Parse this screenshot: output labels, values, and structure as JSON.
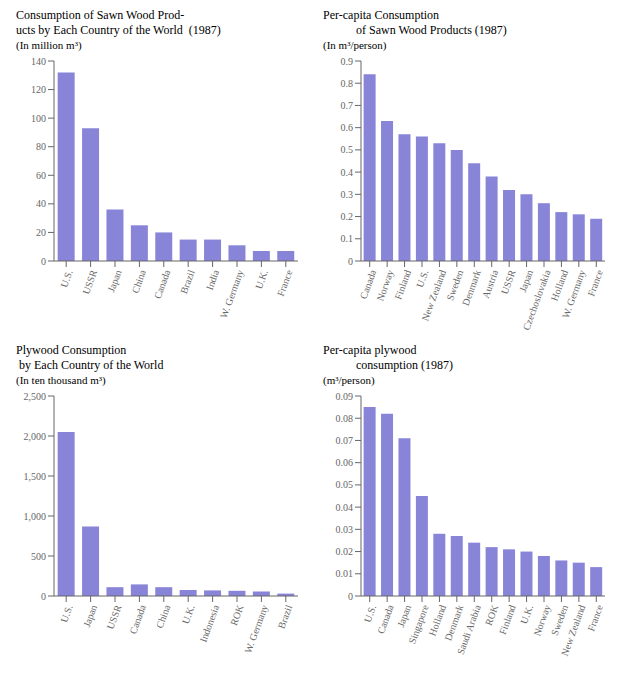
{
  "chart_data": [
    {
      "type": "bar",
      "title": "Consumption of Sawn Wood Prod-\nucts by Each Country of the World  (1987)",
      "y_label": "(In million m³)",
      "categories": [
        "U.S.",
        "USSR",
        "Japan",
        "China",
        "Canada",
        "Brazil",
        "India",
        "W. Germany",
        "U.K.",
        "France"
      ],
      "values": [
        132,
        93,
        36,
        25,
        20,
        15,
        15,
        11,
        7,
        7
      ],
      "ylim": [
        0,
        140
      ],
      "yticks": [
        0,
        20,
        40,
        60,
        80,
        100,
        120,
        140
      ],
      "color": "#8884d8",
      "grid": false
    },
    {
      "type": "bar",
      "title": "Per-capita Consumption\n           of Sawn Wood Products (1987)",
      "y_label": "(In m³/person)",
      "categories": [
        "Canada",
        "Norway",
        "Finland",
        "U.S.",
        "New Zealand",
        "Sweden",
        "Denmark",
        "Austria",
        "USSR",
        "Japan",
        "Czechoslovakia",
        "Holland",
        "W. Germany",
        "France"
      ],
      "values": [
        0.84,
        0.63,
        0.57,
        0.56,
        0.53,
        0.5,
        0.44,
        0.38,
        0.32,
        0.3,
        0.26,
        0.22,
        0.21,
        0.19
      ],
      "ylim": [
        0,
        0.9
      ],
      "yticks": [
        0,
        0.1,
        0.2,
        0.3,
        0.4,
        0.5,
        0.6,
        0.7,
        0.8,
        0.9
      ],
      "color": "#8884d8",
      "grid": false
    },
    {
      "type": "bar",
      "title": "Plywood Consumption\n by Each Country of the World",
      "y_label": "(In ten thousand m³)",
      "categories": [
        "U.S.",
        "Japan",
        "USSR",
        "Canada",
        "China",
        "U.K.",
        "Indonesia",
        "ROK",
        "W. Germany",
        "Brazil"
      ],
      "values": [
        2050,
        870,
        110,
        145,
        110,
        75,
        70,
        65,
        55,
        30
      ],
      "ylim": [
        0,
        2500
      ],
      "yticks": [
        0,
        500,
        {
          "value": 1000,
          "label": "1,000"
        },
        {
          "value": 1500,
          "label": "1,500"
        },
        {
          "value": 2000,
          "label": "2,000"
        },
        {
          "value": 2500,
          "label": "2,500"
        }
      ],
      "color": "#8884d8",
      "grid": false
    },
    {
      "type": "bar",
      "title": "Per-capita plywood\n           consumption (1987)",
      "y_label": "(m³/person)",
      "categories": [
        "U.S.",
        "Canada",
        "Japan",
        "Singapore",
        "Holland",
        "Denmark",
        "Saudi Arabia",
        "ROK",
        "Finland",
        "U.K.",
        "Norway",
        "Sweden",
        "New Zealand",
        "France"
      ],
      "values": [
        0.085,
        0.082,
        0.071,
        0.045,
        0.028,
        0.027,
        0.024,
        0.022,
        0.021,
        0.02,
        0.018,
        0.016,
        0.015,
        0.013
      ],
      "ylim": [
        0,
        0.09
      ],
      "yticks": [
        0,
        0.01,
        0.02,
        0.03,
        0.04,
        0.05,
        0.06,
        0.07,
        0.08,
        0.09
      ],
      "color": "#8884d8",
      "grid": false
    }
  ]
}
